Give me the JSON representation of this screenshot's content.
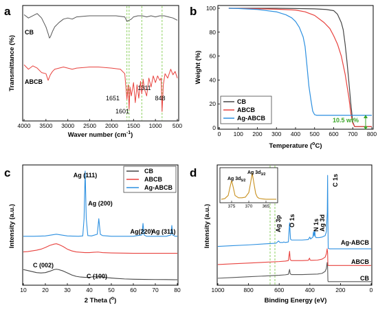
{
  "chart_data": [
    {
      "panel": "a",
      "type": "line",
      "xlabel": "Waver number (cm",
      "xlabel_sup": "-1",
      "xlabel_end": ")",
      "ylabel": "Transmittance (%)",
      "xlim": [
        4000,
        500
      ],
      "xticks": [
        "4000",
        "3500",
        "3000",
        "2500",
        "2000",
        "1500",
        "1000",
        "500"
      ],
      "y_ticks_shown": false,
      "series": [
        {
          "name": "CB",
          "color": "#555555",
          "x": [
            4000,
            3900,
            3800,
            3700,
            3600,
            3500,
            3450,
            3420,
            3400,
            3350,
            3300,
            3200,
            3100,
            3000,
            2900,
            2800,
            2500,
            2300,
            2100,
            1900,
            1700,
            1650,
            1600,
            1550,
            1500,
            1400,
            1300,
            1200,
            1100,
            1000,
            900,
            800,
            700,
            600,
            500
          ],
          "y": [
            93,
            90,
            92,
            94,
            90,
            82,
            76,
            72,
            73,
            78,
            82,
            86,
            89,
            90,
            89,
            91,
            92,
            92,
            92,
            92,
            91,
            87,
            88,
            89,
            91,
            92,
            92,
            91,
            92,
            91,
            92,
            92,
            91,
            90,
            88
          ]
        },
        {
          "name": "ABCB",
          "color": "#e8413d",
          "x": [
            4000,
            3900,
            3800,
            3700,
            3600,
            3500,
            3450,
            3400,
            3350,
            3300,
            3200,
            3100,
            3000,
            2900,
            2800,
            2500,
            2300,
            2000,
            1800,
            1700,
            1651,
            1620,
            1601,
            1580,
            1550,
            1500,
            1460,
            1420,
            1380,
            1340,
            1311,
            1280,
            1250,
            1200,
            1150,
            1100,
            1050,
            1000,
            950,
            900,
            870,
            848,
            820,
            780,
            720,
            650,
            600,
            550,
            500
          ],
          "y": [
            48,
            44,
            47,
            45,
            41,
            40,
            34,
            39,
            42,
            44,
            45,
            46,
            45,
            44,
            45,
            46,
            46,
            45,
            44,
            40,
            17,
            30,
            8,
            28,
            20,
            32,
            14,
            30,
            18,
            33,
            22,
            35,
            26,
            20,
            36,
            28,
            38,
            32,
            38,
            34,
            36,
            6,
            30,
            40,
            36,
            44,
            39,
            42,
            36
          ]
        }
      ],
      "annotations": [
        "1651",
        "1601",
        "1311",
        "848"
      ],
      "guide_lines_x": [
        1651,
        1601,
        1311,
        848
      ]
    },
    {
      "panel": "b",
      "type": "line",
      "xlabel": "Temperature (",
      "xlabel_sup": "o",
      "xlabel_end": "C)",
      "ylabel": "Weight (%)",
      "xlim": [
        0,
        800
      ],
      "ylim": [
        0,
        100
      ],
      "xticks": [
        "0",
        "100",
        "200",
        "300",
        "400",
        "500",
        "600",
        "700",
        "800"
      ],
      "yticks": [
        "0",
        "20",
        "40",
        "60",
        "80",
        "100"
      ],
      "legend": "bottom-left",
      "series": [
        {
          "name": "CB",
          "color": "#444444",
          "x": [
            50,
            100,
            200,
            300,
            400,
            500,
            560,
            600,
            620,
            640,
            650,
            660,
            670,
            680,
            690,
            700,
            710,
            750,
            800
          ],
          "y": [
            100,
            100,
            100,
            100,
            99.8,
            99.5,
            99,
            98,
            95,
            88,
            82,
            70,
            55,
            38,
            20,
            5,
            1,
            1,
            1
          ]
        },
        {
          "name": "ABCB",
          "color": "#e8413d",
          "x": [
            50,
            100,
            200,
            300,
            400,
            450,
            500,
            550,
            580,
            600,
            620,
            640,
            660,
            680,
            690,
            700,
            710,
            750,
            800
          ],
          "y": [
            100,
            99.9,
            99.6,
            99.2,
            98.5,
            97,
            94,
            88,
            83,
            77,
            70,
            60,
            45,
            25,
            12,
            4,
            1,
            1,
            1
          ]
        },
        {
          "name": "Ag-ABCB",
          "color": "#2b8fe0",
          "x": [
            50,
            100,
            200,
            300,
            350,
            380,
            400,
            420,
            440,
            450,
            460,
            470,
            480,
            490,
            500,
            510,
            600,
            700,
            800
          ],
          "y": [
            100,
            99.8,
            99,
            97,
            94.5,
            92,
            89,
            84,
            76,
            68,
            52,
            35,
            24,
            14,
            11,
            10.5,
            10.5,
            10.5,
            10.5
          ]
        }
      ],
      "annotation": "10.5 wt%"
    },
    {
      "panel": "c",
      "type": "line",
      "xlabel": "2 Theta (",
      "xlabel_sup": "o",
      "xlabel_end": ")",
      "ylabel": "Intensity (a.u.)",
      "xlim": [
        10,
        80
      ],
      "xticks": [
        "10",
        "20",
        "30",
        "40",
        "50",
        "60",
        "70",
        "80"
      ],
      "y_ticks_shown": false,
      "legend": "top-right",
      "series": [
        {
          "name": "CB",
          "color": "#444444",
          "x": [
            10,
            12,
            14,
            16,
            18,
            20,
            22,
            24,
            25,
            26,
            28,
            30,
            32,
            34,
            36,
            38,
            40,
            42,
            43.5,
            45,
            48,
            52,
            56,
            60,
            65,
            70,
            75,
            80
          ],
          "y": [
            2.0,
            1.85,
            1.7,
            1.55,
            1.5,
            1.55,
            1.75,
            2.0,
            2.05,
            2.0,
            1.8,
            1.5,
            1.2,
            1.0,
            0.9,
            0.85,
            0.85,
            0.95,
            1.0,
            0.95,
            0.8,
            0.7,
            0.62,
            0.58,
            0.55,
            0.53,
            0.52,
            0.5
          ]
        },
        {
          "name": "ABCB",
          "color": "#e8413d",
          "x": [
            10,
            12,
            14,
            16,
            18,
            20,
            22,
            24,
            25,
            26,
            28,
            30,
            32,
            34,
            36,
            38,
            40,
            42,
            44,
            46,
            50,
            55,
            60,
            65,
            70,
            75,
            80
          ],
          "y": [
            4.6,
            4.65,
            4.75,
            4.85,
            5.0,
            5.25,
            5.55,
            5.75,
            5.8,
            5.7,
            5.4,
            5.0,
            4.75,
            4.6,
            4.55,
            4.5,
            4.5,
            4.55,
            4.58,
            4.5,
            4.45,
            4.42,
            4.4,
            4.4,
            4.4,
            4.4,
            4.4
          ]
        },
        {
          "name": "Ag-ABCB",
          "color": "#2b8fe0",
          "x": [
            10,
            15,
            20,
            23,
            25,
            27,
            30,
            35,
            37,
            37.6,
            38.1,
            38.6,
            39.3,
            41,
            43.6,
            44.3,
            45.0,
            46,
            50,
            55,
            60,
            63.9,
            64.4,
            64.9,
            66,
            70,
            75,
            77.1,
            77.5,
            77.9,
            79,
            80
          ],
          "y": [
            6.9,
            6.9,
            6.95,
            7.1,
            7.2,
            7.1,
            6.95,
            6.9,
            6.95,
            9.5,
            16.5,
            9.5,
            7.0,
            6.95,
            7.2,
            9.5,
            7.2,
            7.0,
            6.9,
            6.9,
            6.9,
            7.1,
            8.8,
            7.1,
            6.9,
            6.9,
            6.9,
            7.1,
            8.5,
            7.1,
            6.9,
            6.9
          ]
        }
      ],
      "annotations": [
        "Ag (111)",
        "Ag (200)",
        "Ag(220)",
        "Ag (311)",
        "C (002)",
        "C (100)"
      ]
    },
    {
      "panel": "d",
      "type": "line",
      "xlabel": "Binding Energy (eV)",
      "ylabel": "Intensity (a.u.)",
      "xlim": [
        1000,
        0
      ],
      "xticks": [
        "1000",
        "800",
        "600",
        "400",
        "200",
        "0"
      ],
      "y_ticks_shown": false,
      "series": [
        {
          "name": "CB",
          "color": "#555555",
          "x": [
            1000,
            900,
            800,
            700,
            600,
            560,
            540,
            532,
            528,
            520,
            500,
            450,
            400,
            350,
            320,
            300,
            292,
            287,
            284,
            282,
            280,
            270,
            260,
            200,
            100,
            0
          ],
          "y": [
            1.0,
            1.15,
            1.3,
            1.45,
            1.6,
            1.7,
            1.8,
            2.8,
            1.9,
            1.75,
            1.75,
            1.75,
            1.8,
            1.85,
            2.0,
            2.4,
            3.0,
            4.2,
            3.4,
            0.5,
            0.3,
            0.3,
            0.3,
            0.3,
            0.3,
            0.3
          ]
        },
        {
          "name": "ABCB",
          "color": "#e8413d",
          "x": [
            1000,
            900,
            800,
            700,
            600,
            560,
            540,
            532,
            528,
            520,
            500,
            450,
            410,
            402,
            398,
            390,
            350,
            320,
            300,
            292,
            287,
            284,
            282,
            280,
            270,
            200,
            100,
            0
          ],
          "y": [
            3.8,
            3.95,
            4.1,
            4.25,
            4.4,
            4.5,
            4.6,
            6.5,
            4.8,
            4.6,
            4.6,
            4.6,
            4.65,
            5.1,
            4.7,
            4.65,
            4.7,
            4.9,
            5.3,
            6.0,
            7.0,
            6.2,
            3.7,
            3.6,
            3.6,
            3.6,
            3.6,
            3.6
          ]
        },
        {
          "name": "Ag-ABCB",
          "color": "#2b8fe0",
          "x": [
            1000,
            900,
            800,
            700,
            620,
            604,
            595,
            575,
            570,
            560,
            540,
            532,
            526,
            520,
            500,
            450,
            410,
            400,
            395,
            380,
            376,
            372,
            368,
            365,
            360,
            340,
            320,
            300,
            292,
            286,
            284,
            282,
            280,
            270,
            200,
            100,
            0
          ],
          "y": [
            7.5,
            7.65,
            7.8,
            8.0,
            8.15,
            8.6,
            8.3,
            8.3,
            8.4,
            8.3,
            8.4,
            12.3,
            9.0,
            8.8,
            8.8,
            8.8,
            8.9,
            9.4,
            9.0,
            9.4,
            10.5,
            9.6,
            10.8,
            9.6,
            9.3,
            9.3,
            9.4,
            9.7,
            10.5,
            14.5,
            22.0,
            13.0,
            7.1,
            7.0,
            7.0,
            7.0,
            7.0
          ]
        }
      ],
      "annotations": [
        "Ag 3p",
        "O 1s",
        "N 1s",
        "Ag 3d",
        "C 1s"
      ],
      "inset": {
        "xlim": [
          378,
          362
        ],
        "xticks": [
          "375",
          "370",
          "365"
        ],
        "label_a": "Ag 3d",
        "label_a_sub": "5/2",
        "label_b": "Ag 3d",
        "label_b_sub": "3/2",
        "color": "#c8901e",
        "x": [
          378,
          377,
          376,
          375.5,
          375,
          374.5,
          374,
          373,
          372,
          371,
          370,
          369.5,
          369,
          368.5,
          368,
          367.5,
          367,
          366,
          365,
          364,
          363,
          362
        ],
        "y": [
          0.05,
          0.07,
          0.18,
          0.45,
          0.7,
          0.45,
          0.18,
          0.1,
          0.1,
          0.12,
          0.28,
          0.6,
          0.95,
          0.6,
          0.25,
          0.12,
          0.08,
          0.06,
          0.05,
          0.05,
          0.05,
          0.05
        ]
      }
    }
  ],
  "panel_labels": {
    "a": "a",
    "b": "b",
    "c": "c",
    "d": "d"
  }
}
